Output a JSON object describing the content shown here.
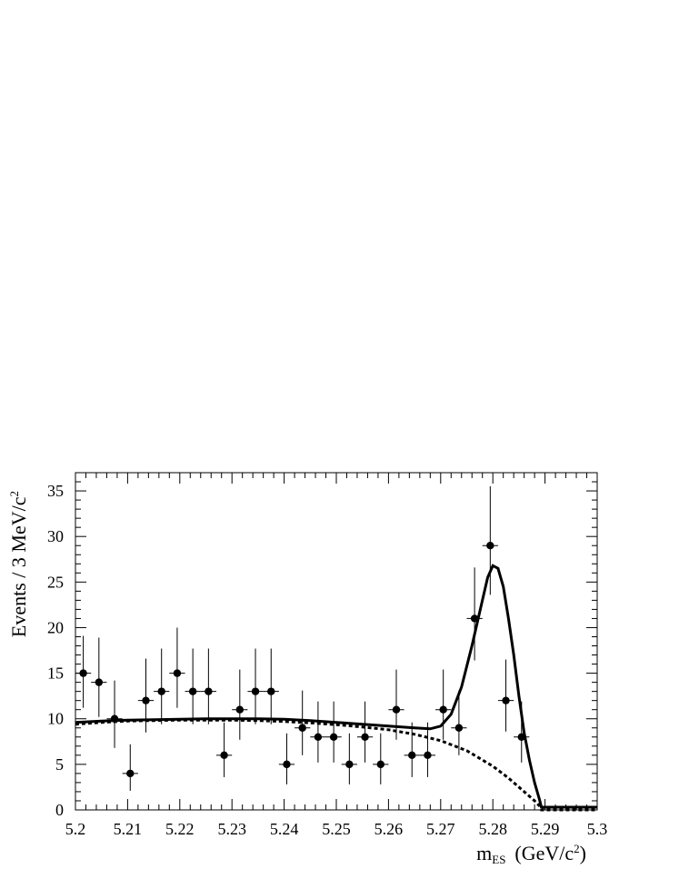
{
  "chart_data": {
    "type": "scatter",
    "xlabel_main": "m",
    "xlabel_sub": "ES",
    "xlabel_unit": "(GeV/c",
    "xlabel_sup": "2",
    "xlabel_close": ")",
    "ylabel_main": "Events / 3 MeV/c",
    "ylabel_sup": "2",
    "xlim": [
      5.2,
      5.3
    ],
    "ylim": [
      0,
      37
    ],
    "xticks": [
      "5.2",
      "5.21",
      "5.22",
      "5.23",
      "5.24",
      "5.25",
      "5.26",
      "5.27",
      "5.28",
      "5.29",
      "5.3"
    ],
    "yticks": [
      "0",
      "5",
      "10",
      "15",
      "20",
      "25",
      "30",
      "35"
    ],
    "bin_width": 0.003,
    "grid": false,
    "points": {
      "x": [
        5.2015,
        5.2045,
        5.2075,
        5.2105,
        5.2135,
        5.2165,
        5.2195,
        5.2225,
        5.2255,
        5.2285,
        5.2315,
        5.2345,
        5.2375,
        5.2405,
        5.2435,
        5.2465,
        5.2495,
        5.2525,
        5.2555,
        5.2585,
        5.2615,
        5.2645,
        5.2675,
        5.2705,
        5.2735,
        5.2765,
        5.2795,
        5.2825,
        5.2855
      ],
      "y": [
        15,
        14,
        10,
        4,
        12,
        13,
        15,
        13,
        13,
        6,
        11,
        13,
        13,
        5,
        9,
        8,
        8,
        5,
        8,
        5,
        11,
        6,
        6,
        11,
        9,
        21,
        29,
        12,
        8
      ],
      "err_up": [
        4.1,
        4.9,
        4.2,
        3.2,
        4.6,
        4.7,
        5.0,
        4.7,
        4.7,
        3.6,
        4.4,
        4.7,
        4.7,
        3.4,
        4.1,
        3.9,
        3.9,
        3.4,
        3.9,
        3.4,
        4.4,
        3.6,
        3.6,
        4.4,
        4.1,
        5.6,
        6.5,
        4.5,
        3.9
      ],
      "err_down": [
        3.8,
        3.8,
        3.2,
        1.9,
        3.5,
        3.6,
        3.8,
        3.6,
        3.6,
        2.4,
        3.3,
        3.6,
        3.6,
        2.2,
        3.0,
        2.8,
        2.8,
        2.2,
        2.8,
        2.2,
        3.3,
        2.4,
        2.4,
        3.3,
        3.0,
        4.6,
        5.4,
        3.4,
        2.8
      ]
    },
    "fit_total": {
      "style": "solid",
      "x": [
        5.2,
        5.205,
        5.21,
        5.215,
        5.22,
        5.225,
        5.23,
        5.235,
        5.24,
        5.245,
        5.25,
        5.255,
        5.26,
        5.265,
        5.268,
        5.27,
        5.272,
        5.274,
        5.276,
        5.278,
        5.279,
        5.28,
        5.281,
        5.282,
        5.283,
        5.284,
        5.285,
        5.286,
        5.287,
        5.288,
        5.289,
        5.2893,
        5.295,
        5.3
      ],
      "y": [
        9.6,
        9.75,
        9.85,
        9.9,
        9.95,
        10.0,
        10.0,
        10.0,
        9.95,
        9.8,
        9.6,
        9.4,
        9.2,
        9.0,
        8.9,
        9.2,
        10.5,
        13.5,
        18.0,
        23.0,
        25.5,
        26.8,
        26.5,
        24.5,
        21.0,
        17.0,
        12.5,
        8.5,
        5.5,
        3.0,
        1.0,
        0.3,
        0.3,
        0.3
      ]
    },
    "fit_background": {
      "style": "dashed",
      "x": [
        5.2,
        5.205,
        5.21,
        5.215,
        5.22,
        5.225,
        5.23,
        5.235,
        5.24,
        5.245,
        5.25,
        5.255,
        5.26,
        5.265,
        5.27,
        5.275,
        5.28,
        5.283,
        5.286,
        5.288,
        5.289,
        5.2893,
        5.295,
        5.3
      ],
      "y": [
        9.4,
        9.6,
        9.75,
        9.8,
        9.85,
        9.85,
        9.85,
        9.8,
        9.7,
        9.55,
        9.35,
        9.1,
        8.8,
        8.3,
        7.6,
        6.5,
        4.8,
        3.5,
        2.0,
        1.0,
        0.4,
        0.0,
        0.0,
        0.0
      ]
    }
  }
}
